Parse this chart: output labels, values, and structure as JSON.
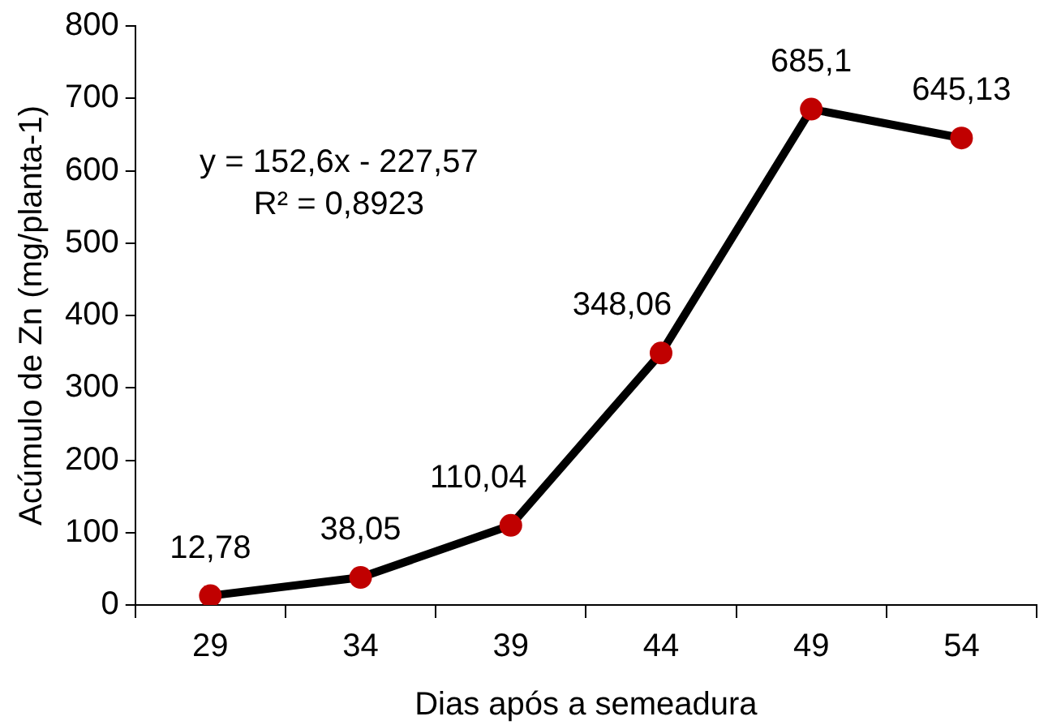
{
  "chart_data": {
    "type": "line",
    "xlabel": "Dias após a semeadura",
    "ylabel": "Acúmulo de Zn (mg/planta-1)",
    "categories": [
      "29",
      "34",
      "39",
      "44",
      "49",
      "54"
    ],
    "series": [
      {
        "color": "#000000",
        "colors": [
          "#c00000",
          "#c00000",
          "#c00000",
          "#c00000",
          "#c00000",
          "#c00000"
        ],
        "values": [
          12.78,
          38.05,
          110.04,
          348.06,
          685.1,
          645.13
        ],
        "value_labels": [
          "12,78",
          "38,05",
          "110,04",
          "348,06",
          "685,1",
          "645,13"
        ]
      }
    ],
    "ylim": [
      0,
      800
    ],
    "yticks": [
      0,
      100,
      200,
      300,
      400,
      500,
      600,
      700,
      800
    ],
    "grid": false,
    "legend": false,
    "marker": "circle",
    "annotations": [
      "y = 152,6x - 227,57",
      "R² = 0,8923"
    ]
  }
}
